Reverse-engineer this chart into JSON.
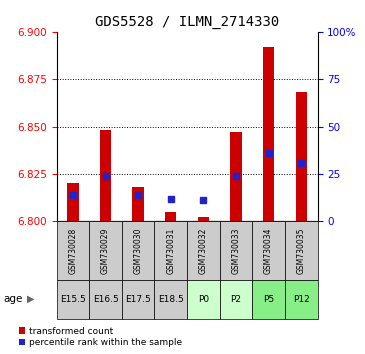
{
  "title": "GDS5528 / ILMN_2714330",
  "samples": [
    "GSM730028",
    "GSM730029",
    "GSM730030",
    "GSM730031",
    "GSM730032",
    "GSM730033",
    "GSM730034",
    "GSM730035"
  ],
  "age_labels": [
    "E15.5",
    "E16.5",
    "E17.5",
    "E18.5",
    "P0",
    "P2",
    "P5",
    "P12"
  ],
  "red_values": [
    6.82,
    6.848,
    6.818,
    6.805,
    6.802,
    6.847,
    6.892,
    6.868
  ],
  "blue_values": [
    6.814,
    6.824,
    6.814,
    6.812,
    6.811,
    6.824,
    6.836,
    6.831
  ],
  "ylim_left": [
    6.8,
    6.9
  ],
  "yticks_left": [
    6.8,
    6.825,
    6.85,
    6.875,
    6.9
  ],
  "ylim_right": [
    0,
    100
  ],
  "yticks_right": [
    0,
    25,
    50,
    75,
    100
  ],
  "bar_bottom": 6.8,
  "bar_width": 0.35,
  "red_color": "#cc0000",
  "blue_color": "#2222cc",
  "sample_bg_color": "#cccccc",
  "age_colors": [
    "#cccccc",
    "#cccccc",
    "#cccccc",
    "#cccccc",
    "#ccffcc",
    "#ccffcc",
    "#88ee88",
    "#88ee88"
  ],
  "grid_yticks": [
    6.825,
    6.85,
    6.875
  ],
  "blue_marker_size": 4.5
}
